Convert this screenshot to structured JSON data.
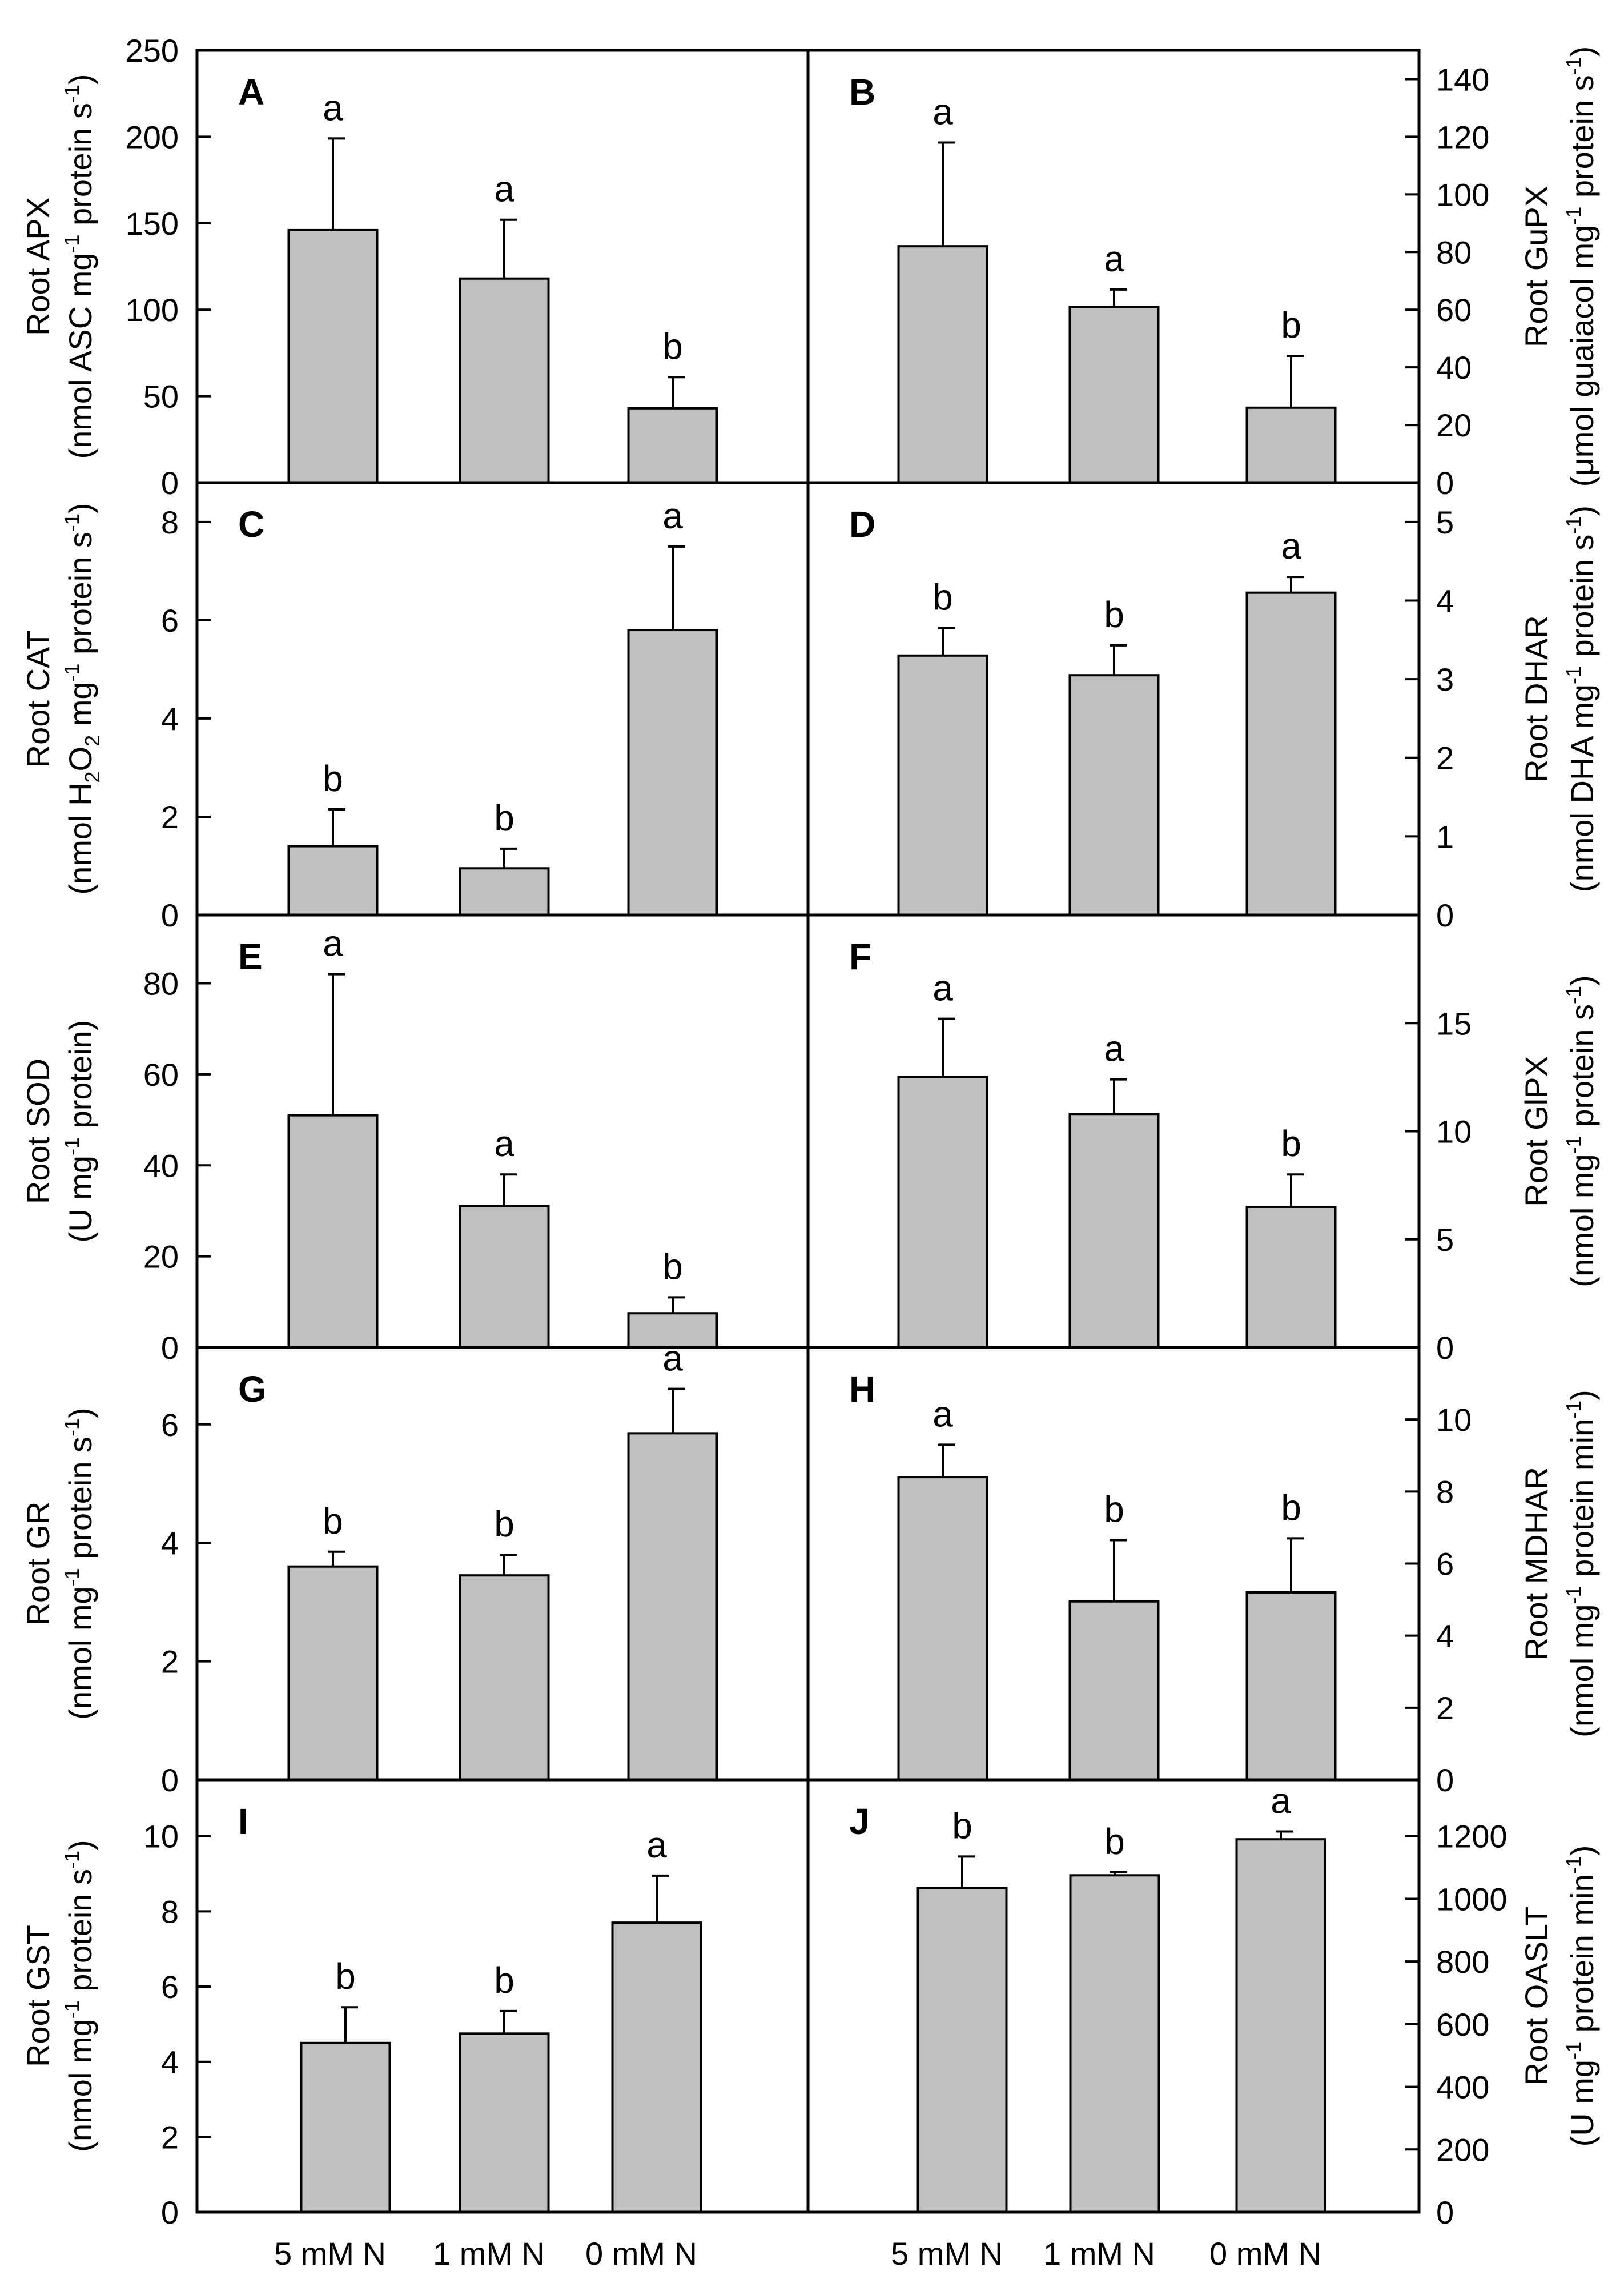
{
  "chart_data": [
    {
      "type": "bar",
      "panel": "A",
      "ylabel_line1": "Root APX",
      "ylabel_line2": [
        "(nmol ASC mg",
        "-1",
        " protein s",
        "-1",
        ")"
      ],
      "categories": [
        "5 mM N",
        "1 mM N",
        "0 mM N"
      ],
      "values": [
        146,
        118,
        43
      ],
      "errors": [
        53,
        34,
        18
      ],
      "significance": [
        "a",
        "a",
        "b"
      ],
      "ylim": [
        0,
        250
      ],
      "yticks": [
        0,
        50,
        100,
        150,
        200,
        250
      ],
      "colors": {
        "bar": "#c0c0c0",
        "edge": "#000000"
      }
    },
    {
      "type": "bar",
      "panel": "B",
      "ylabel_line1": "Root GuPX",
      "ylabel_line2": [
        "(μmol guaiacol mg",
        "-1",
        " protein s",
        "-1",
        ")"
      ],
      "categories": [
        "5 mM N",
        "1 mM N",
        "0 mM N"
      ],
      "values": [
        82,
        61,
        26
      ],
      "errors": [
        36,
        6,
        18
      ],
      "significance": [
        "a",
        "a",
        "b"
      ],
      "ylim": [
        0,
        150
      ],
      "yticks": [
        0,
        20,
        40,
        60,
        80,
        100,
        120,
        140
      ],
      "colors": {
        "bar": "#c0c0c0",
        "edge": "#000000"
      }
    },
    {
      "type": "bar",
      "panel": "C",
      "ylabel_line1": "Root CAT",
      "ylabel_line2": [
        "(nmol H",
        "2",
        "O",
        "2",
        " mg",
        "-1",
        " protein s",
        "-1",
        ")"
      ],
      "categories": [
        "5 mM N",
        "1 mM N",
        "0 mM N"
      ],
      "values": [
        1.4,
        0.95,
        5.8
      ],
      "errors": [
        0.75,
        0.4,
        1.7
      ],
      "significance": [
        "b",
        "b",
        "a"
      ],
      "ylim": [
        0,
        8.8
      ],
      "yticks": [
        0,
        2,
        4,
        6,
        8
      ],
      "colors": {
        "bar": "#c0c0c0",
        "edge": "#000000"
      }
    },
    {
      "type": "bar",
      "panel": "D",
      "ylabel_line1": "Root DHAR",
      "ylabel_line2": [
        "(nmol DHA mg",
        "-1",
        " protein s",
        "-1",
        ")"
      ],
      "categories": [
        "5 mM N",
        "1 mM N",
        "0 mM N"
      ],
      "values": [
        3.3,
        3.05,
        4.1
      ],
      "errors": [
        0.35,
        0.38,
        0.2
      ],
      "significance": [
        "b",
        "b",
        "a"
      ],
      "ylim": [
        0,
        5.5
      ],
      "yticks": [
        0,
        1,
        2,
        3,
        4,
        5
      ],
      "colors": {
        "bar": "#c0c0c0",
        "edge": "#000000"
      }
    },
    {
      "type": "bar",
      "panel": "E",
      "ylabel_line1": "Root SOD",
      "ylabel_line2": [
        "(U mg",
        "-1",
        " protein)"
      ],
      "categories": [
        "5 mM N",
        "1 mM N",
        "0 mM N"
      ],
      "values": [
        51,
        31,
        7.5
      ],
      "errors": [
        31,
        7,
        3.5
      ],
      "significance": [
        "a",
        "a",
        "b"
      ],
      "ylim": [
        0,
        95
      ],
      "yticks": [
        0,
        20,
        40,
        60,
        80
      ],
      "colors": {
        "bar": "#c0c0c0",
        "edge": "#000000"
      }
    },
    {
      "type": "bar",
      "panel": "F",
      "ylabel_line1": "Root GlPX",
      "ylabel_line2": [
        "(nmol mg",
        "-1",
        " protein s",
        "-1",
        ")"
      ],
      "categories": [
        "5 mM N",
        "1 mM N",
        "0 mM N"
      ],
      "values": [
        12.5,
        10.8,
        6.5
      ],
      "errors": [
        2.7,
        1.6,
        1.5
      ],
      "significance": [
        "a",
        "a",
        "b"
      ],
      "ylim": [
        0,
        20
      ],
      "yticks": [
        0,
        5,
        10,
        15
      ],
      "colors": {
        "bar": "#c0c0c0",
        "edge": "#000000"
      }
    },
    {
      "type": "bar",
      "panel": "G",
      "ylabel_line1": "Root GR",
      "ylabel_line2": [
        "(nmol mg",
        "-1",
        " protein s",
        "-1",
        ")"
      ],
      "categories": [
        "5 mM N",
        "1 mM N",
        "0 mM N"
      ],
      "values": [
        3.6,
        3.45,
        5.85
      ],
      "errors": [
        0.25,
        0.35,
        0.75
      ],
      "significance": [
        "b",
        "b",
        "a"
      ],
      "ylim": [
        0,
        7.3
      ],
      "yticks": [
        0,
        2,
        4,
        6
      ],
      "colors": {
        "bar": "#c0c0c0",
        "edge": "#000000"
      }
    },
    {
      "type": "bar",
      "panel": "H",
      "ylabel_line1": "Root MDHAR",
      "ylabel_line2": [
        "(nmol mg",
        "-1",
        " protein min",
        "-1",
        ")"
      ],
      "categories": [
        "5 mM N",
        "1 mM N",
        "0 mM N"
      ],
      "values": [
        8.4,
        4.95,
        5.2
      ],
      "errors": [
        0.9,
        1.7,
        1.5
      ],
      "significance": [
        "a",
        "b",
        "b"
      ],
      "ylim": [
        0,
        12
      ],
      "yticks": [
        0,
        2,
        4,
        6,
        8,
        10
      ],
      "colors": {
        "bar": "#c0c0c0",
        "edge": "#000000"
      }
    },
    {
      "type": "bar",
      "panel": "I",
      "ylabel_line1": "Root GST",
      "ylabel_line2": [
        "(nmol mg",
        "-1",
        " protein s",
        "-1",
        ")"
      ],
      "categories": [
        "5 mM N",
        "1 mM N",
        "0 mM N"
      ],
      "values": [
        4.5,
        4.75,
        7.7
      ],
      "errors": [
        0.95,
        0.6,
        1.25
      ],
      "significance": [
        "b",
        "b",
        "a"
      ],
      "ylim": [
        0,
        11.5
      ],
      "yticks": [
        0,
        2,
        4,
        6,
        8,
        10
      ],
      "colors": {
        "bar": "#c0c0c0",
        "edge": "#000000"
      }
    },
    {
      "type": "bar",
      "panel": "J",
      "ylabel_line1": "Root OASLT",
      "ylabel_line2": [
        "(U mg",
        "-1",
        " protein min",
        "-1",
        ")"
      ],
      "categories": [
        "5 mM N",
        "1 mM N",
        "0 mM N"
      ],
      "values": [
        1035,
        1075,
        1190
      ],
      "errors": [
        100,
        10,
        25
      ],
      "significance": [
        "b",
        "b",
        "a"
      ],
      "ylim": [
        0,
        1380
      ],
      "yticks": [
        0,
        200,
        400,
        600,
        800,
        1000,
        1200
      ],
      "colors": {
        "bar": "#c0c0c0",
        "edge": "#000000"
      }
    }
  ]
}
